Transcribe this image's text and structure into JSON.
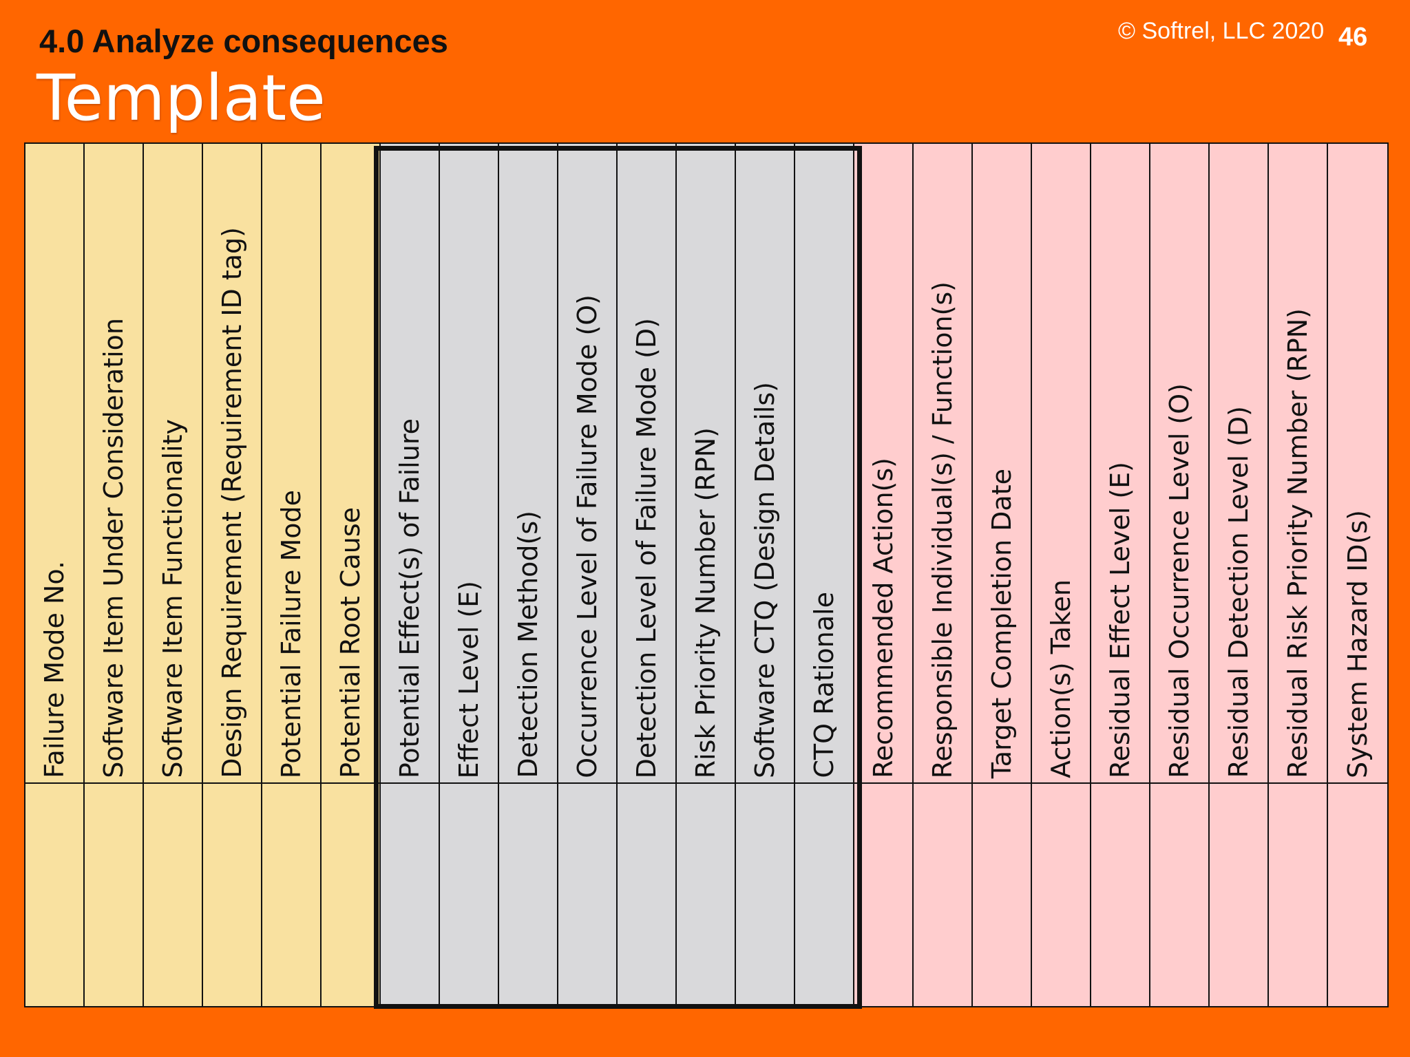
{
  "slide": {
    "heading": "4.0 Analyze consequences",
    "subtitle": "Template",
    "copyright": "© Softrel, LLC 2020",
    "page_number": "46"
  },
  "colors": {
    "background": "#FF6600",
    "group_identification": "#F9E1A0",
    "group_analysis": "#D9D9DB",
    "group_mitigation": "#FFCDCE"
  },
  "columns": [
    {
      "label": "Failure Mode No.",
      "group": "yellow"
    },
    {
      "label": "Software Item Under Consideration",
      "group": "yellow"
    },
    {
      "label": "Software Item Functionality",
      "group": "yellow"
    },
    {
      "label": "Design Requirement (Requirement ID tag)",
      "group": "yellow"
    },
    {
      "label": "Potential Failure Mode",
      "group": "yellow"
    },
    {
      "label": "Potential Root Cause",
      "group": "yellow"
    },
    {
      "label": "Potential Effect(s) of Failure",
      "group": "gray"
    },
    {
      "label": "Effect Level (E)",
      "group": "gray"
    },
    {
      "label": "Detection Method(s)",
      "group": "gray"
    },
    {
      "label": "Occurrence Level of Failure Mode (O)",
      "group": "gray"
    },
    {
      "label": "Detection Level of Failure Mode (D)",
      "group": "gray"
    },
    {
      "label": "Risk Priority Number (RPN)",
      "group": "gray"
    },
    {
      "label": "Software CTQ (Design Details)",
      "group": "gray"
    },
    {
      "label": "CTQ Rationale",
      "group": "gray"
    },
    {
      "label": "Recommended Action(s)",
      "group": "pink"
    },
    {
      "label": "Responsible Individual(s) / Function(s)",
      "group": "pink"
    },
    {
      "label": "Target Completion Date",
      "group": "pink"
    },
    {
      "label": "Action(s) Taken",
      "group": "pink"
    },
    {
      "label": "Residual Effect Level (E)",
      "group": "pink"
    },
    {
      "label": "Residual Occurrence Level (O)",
      "group": "pink"
    },
    {
      "label": "Residual Detection Level (D)",
      "group": "pink"
    },
    {
      "label": "Residual Risk Priority Number (RPN)",
      "group": "pink"
    },
    {
      "label": "System Hazard ID(s)",
      "group": "pink"
    }
  ]
}
